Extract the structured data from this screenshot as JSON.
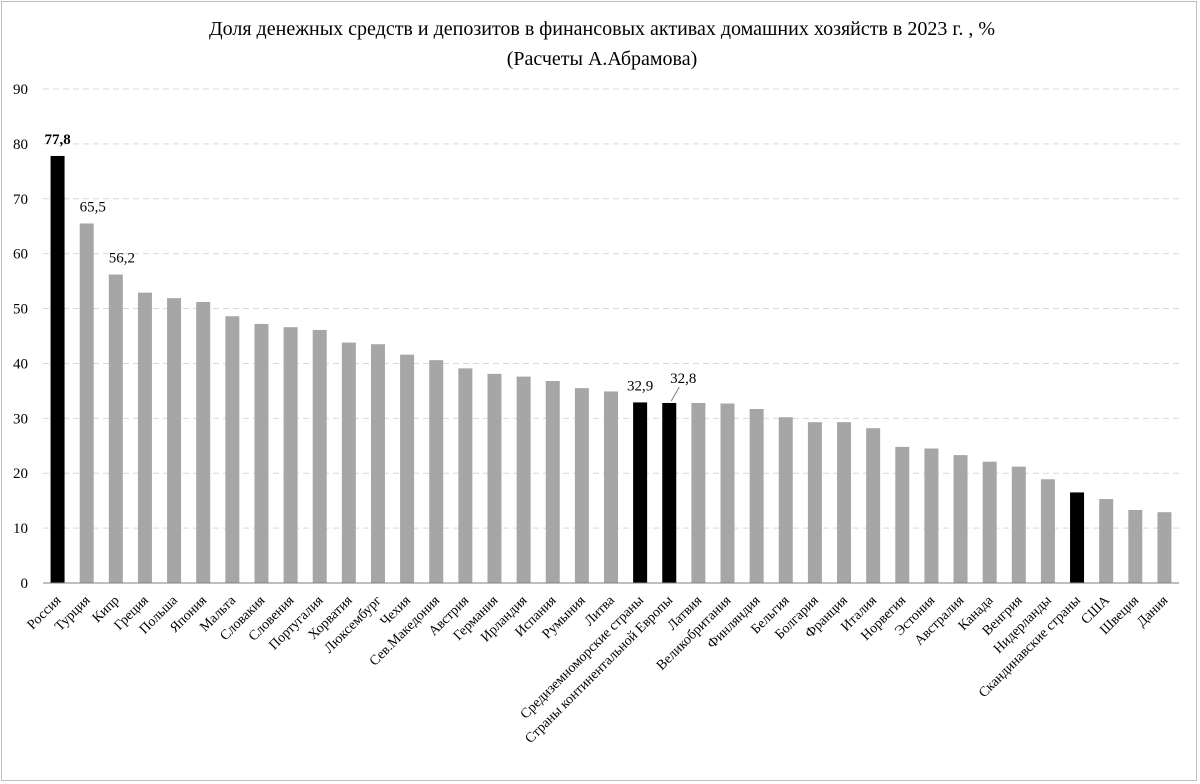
{
  "chart_data": {
    "type": "bar",
    "title": "Доля денежных средств и депозитов в финансовых активах домашних хозяйств в 2023 г. , %",
    "subtitle": "(Расчеты А.Абрамова)",
    "xlabel": "",
    "ylabel": "",
    "ylim": [
      0,
      90
    ],
    "yticks": [
      0,
      10,
      20,
      30,
      40,
      50,
      60,
      70,
      80,
      90
    ],
    "grid": true,
    "legend": "none",
    "colors": {
      "default": "#a6a6a6",
      "highlight": "#000000",
      "grid": "#d9d9d9",
      "axis": "#7f7f7f"
    },
    "categories": [
      "Россия",
      "Турция",
      "Кипр",
      "Греция",
      "Польша",
      "Япония",
      "Мальта",
      "Словакия",
      "Словения",
      "Португалия",
      "Хорватия",
      "Люксембург",
      "Чехия",
      "Сев.Македония",
      "Австрия",
      "Германия",
      "Ирландия",
      "Испания",
      "Румыния",
      "Литва",
      "Средиземноморские страны",
      "Страны континентальной Европы",
      "Латвия",
      "Великобритания",
      "Финляндия",
      "Бельгия",
      "Болгария",
      "Франция",
      "Италия",
      "Норвегия",
      "Эстония",
      "Австралия",
      "Канада",
      "Венгрия",
      "Нидерланды",
      "Скандинавские страны",
      "США",
      "Швеция",
      "Дания"
    ],
    "values": [
      77.8,
      65.5,
      56.2,
      52.9,
      51.9,
      51.2,
      48.6,
      47.2,
      46.6,
      46.1,
      43.8,
      43.5,
      41.6,
      40.6,
      39.1,
      38.1,
      37.6,
      36.8,
      35.5,
      34.9,
      32.9,
      32.8,
      32.8,
      32.7,
      31.7,
      30.2,
      29.3,
      29.3,
      28.2,
      24.8,
      24.5,
      23.3,
      22.1,
      21.2,
      18.9,
      16.5,
      15.3,
      13.3,
      12.9
    ],
    "highlighted": [
      "Россия",
      "Средиземноморские страны",
      "Страны континентальной Европы",
      "Скандинавские страны"
    ],
    "data_labels": [
      {
        "category": "Россия",
        "text": "77,8",
        "bold": true
      },
      {
        "category": "Турция",
        "text": "65,5",
        "bold": false
      },
      {
        "category": "Кипр",
        "text": "56,2",
        "bold": false
      },
      {
        "category": "Средиземноморские страны",
        "text": "32,9",
        "bold": false
      },
      {
        "category": "Страны континентальной Европы",
        "text": "32,8",
        "bold": false,
        "leader": true
      }
    ]
  }
}
